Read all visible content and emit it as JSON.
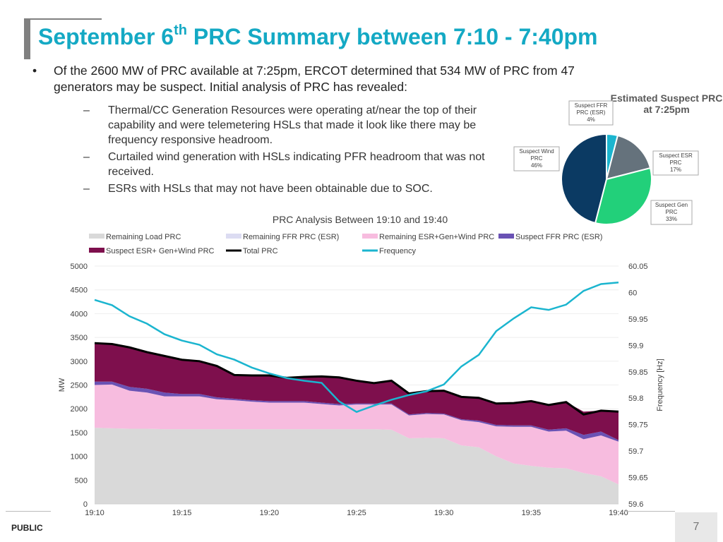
{
  "title": {
    "main": "September 6",
    "sup": "th",
    "rest": " PRC Summary between 7:10 - 7:40pm"
  },
  "bullet": {
    "marker": "•",
    "text": "Of the 2600 MW of PRC available at 7:25pm, ERCOT determined that 534 MW of PRC from 47 generators may be suspect. Initial analysis of PRC has revealed:",
    "subs": [
      {
        "marker": "–",
        "text": "Thermal/CC Generation Resources were operating at/near the top of their capability and were telemetering HSLs that made it look like there may be frequency responsive headroom."
      },
      {
        "marker": "–",
        "text": "Curtailed wind generation with HSLs indicating PFR headroom that was not received."
      },
      {
        "marker": "–",
        "text": "ESRs with HSLs that may not have been obtainable due to SOC."
      }
    ]
  },
  "footer": {
    "label": "PUBLIC",
    "page": "7"
  },
  "chart_data": [
    {
      "type": "pie",
      "title": "Estimated Suspect PRC at 7:25pm",
      "slices": [
        {
          "name": "Suspect FFR PRC (ESR)",
          "label": "4%",
          "value": 4,
          "color": "#1bb5cf"
        },
        {
          "name": "Suspect ESR PRC",
          "label": "17%",
          "value": 17,
          "color": "#65727c"
        },
        {
          "name": "Suspect Gen PRC",
          "label": "33%",
          "value": 33,
          "color": "#22d07a"
        },
        {
          "name": "Suspect Wind PRC",
          "label": "46%",
          "value": 46,
          "color": "#0b3a63"
        }
      ]
    },
    {
      "type": "area",
      "title": "PRC Analysis Between 19:10 and 19:40",
      "xlabel": "",
      "ylabel": "MW",
      "y2label": "Frequency [Hz]",
      "ylim": [
        0,
        5000
      ],
      "yticks": [
        "0",
        "500",
        "1000",
        "1500",
        "2000",
        "2500",
        "3000",
        "3500",
        "4000",
        "4500",
        "5000"
      ],
      "y2lim": [
        59.6,
        60.05
      ],
      "y2ticks": [
        "59.6",
        "59.65",
        "59.7",
        "59.75",
        "59.8",
        "59.85",
        "59.9",
        "59.95",
        "60",
        "60.05"
      ],
      "xticks": [
        "19:10",
        "19:15",
        "19:20",
        "19:25",
        "19:30",
        "19:35",
        "19:40"
      ],
      "x": [
        0,
        1,
        2,
        3,
        4,
        5,
        6,
        7,
        8,
        9,
        10,
        11,
        12,
        13,
        14,
        15,
        16,
        17,
        18,
        19,
        20,
        21,
        22,
        23,
        24,
        25,
        26,
        27,
        28,
        29,
        30
      ],
      "legend": [
        {
          "name": "Remaining Load PRC",
          "color": "#d9d9d9",
          "kind": "area"
        },
        {
          "name": "Remaining FFR PRC (ESR)",
          "color": "#dcdcf2",
          "kind": "area"
        },
        {
          "name": "Remaining ESR+Gen+Wind PRC",
          "color": "#f7bcdf",
          "kind": "area"
        },
        {
          "name": "Suspect FFR PRC (ESR)",
          "color": "#6a52b4",
          "kind": "area"
        },
        {
          "name": "Suspect ESR+ Gen+Wind PRC",
          "color": "#7e0f4d",
          "kind": "area"
        },
        {
          "name": "Total PRC",
          "color": "#000000",
          "kind": "line"
        },
        {
          "name": "Frequency",
          "color": "#1bb5cf",
          "kind": "line"
        }
      ],
      "series": [
        {
          "name": "Remaining Load PRC",
          "color": "#d9d9d9",
          "values": [
            1600,
            1590,
            1580,
            1580,
            1570,
            1570,
            1570,
            1570,
            1570,
            1570,
            1570,
            1570,
            1570,
            1570,
            1570,
            1570,
            1570,
            1560,
            1380,
            1390,
            1380,
            1230,
            1190,
            1000,
            850,
            800,
            760,
            750,
            650,
            580,
            410
          ]
        },
        {
          "name": "Remaining FFR PRC (ESR)",
          "color": "#dcdcf2",
          "values": [
            0,
            0,
            0,
            0,
            0,
            0,
            0,
            0,
            0,
            0,
            0,
            0,
            0,
            0,
            0,
            0,
            0,
            0,
            0,
            0,
            0,
            0,
            0,
            0,
            0,
            0,
            0,
            0,
            0,
            0,
            0
          ]
        },
        {
          "name": "Remaining ESR+Gen+Wind PRC",
          "color": "#f7bcdf",
          "values": [
            900,
            920,
            800,
            760,
            690,
            690,
            690,
            630,
            610,
            580,
            560,
            560,
            560,
            530,
            500,
            520,
            520,
            530,
            480,
            500,
            500,
            530,
            530,
            630,
            770,
            820,
            760,
            790,
            710,
            860,
            900
          ]
        },
        {
          "name": "Suspect FFR PRC (ESR)",
          "color": "#6a52b4",
          "values": [
            70,
            60,
            80,
            80,
            80,
            50,
            50,
            40,
            30,
            30,
            30,
            30,
            30,
            30,
            30,
            20,
            20,
            20,
            20,
            20,
            20,
            20,
            30,
            30,
            30,
            30,
            40,
            50,
            90,
            80,
            30
          ]
        },
        {
          "name": "Suspect ESR+ Gen+Wind PRC",
          "color": "#7e0f4d",
          "values": [
            810,
            790,
            830,
            750,
            770,
            720,
            690,
            660,
            500,
            520,
            540,
            490,
            510,
            550,
            560,
            480,
            430,
            480,
            440,
            460,
            480,
            470,
            480,
            450,
            470,
            510,
            520,
            550,
            490,
            440,
            600
          ]
        },
        {
          "name": "Total PRC",
          "color": "#000000",
          "axis": "left",
          "values": [
            3380,
            3360,
            3290,
            3190,
            3110,
            3030,
            3000,
            2900,
            2710,
            2700,
            2700,
            2650,
            2670,
            2680,
            2660,
            2590,
            2540,
            2590,
            2320,
            2370,
            2380,
            2250,
            2230,
            2110,
            2120,
            2160,
            2080,
            2140,
            1880,
            1960,
            1940
          ]
        },
        {
          "name": "Frequency",
          "color": "#1bb5cf",
          "axis": "right",
          "values": [
            59.986,
            59.976,
            59.955,
            59.941,
            59.921,
            59.909,
            59.901,
            59.883,
            59.873,
            59.858,
            59.847,
            59.838,
            59.833,
            59.829,
            59.794,
            59.774,
            59.786,
            59.797,
            59.806,
            59.813,
            59.826,
            59.86,
            59.882,
            59.927,
            59.951,
            59.972,
            59.967,
            59.977,
            60.003,
            60.016,
            60.019
          ]
        }
      ]
    }
  ]
}
